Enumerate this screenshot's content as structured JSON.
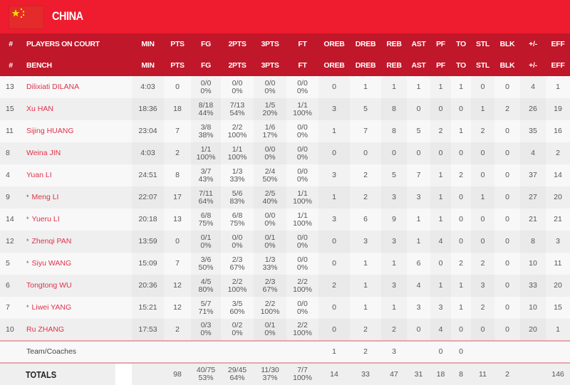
{
  "team": {
    "name": "CHINA",
    "flag_icon": "china-flag"
  },
  "colors": {
    "header": "#ee1c2e",
    "table_header": "#c0172a",
    "player_link": "#e0324a"
  },
  "headers_on_court": [
    "#",
    "PLAYERS ON COURT",
    "MIN",
    "PTS",
    "FG",
    "2PTS",
    "3PTS",
    "FT",
    "OREB",
    "DREB",
    "REB",
    "AST",
    "PF",
    "TO",
    "STL",
    "BLK",
    "+/-",
    "EFF"
  ],
  "headers_bench": [
    "#",
    "BENCH",
    "MIN",
    "PTS",
    "FG",
    "2PTS",
    "3PTS",
    "FT",
    "OREB",
    "DREB",
    "REB",
    "AST",
    "PF",
    "TO",
    "STL",
    "BLK",
    "+/-",
    "EFF"
  ],
  "players": [
    {
      "num": "13",
      "name": "Dilixiati DILANA",
      "starter": false,
      "min": "4:03",
      "pts": "0",
      "fg": [
        "0/0",
        "0%"
      ],
      "p2": [
        "0/0",
        "0%"
      ],
      "p3": [
        "0/0",
        "0%"
      ],
      "ft": [
        "0/0",
        "0%"
      ],
      "oreb": "0",
      "dreb": "1",
      "reb": "1",
      "ast": "1",
      "pf": "1",
      "to": "1",
      "stl": "0",
      "blk": "0",
      "pm": "4",
      "eff": "1"
    },
    {
      "num": "15",
      "name": "Xu HAN",
      "starter": false,
      "min": "18:36",
      "pts": "18",
      "fg": [
        "8/18",
        "44%"
      ],
      "p2": [
        "7/13",
        "54%"
      ],
      "p3": [
        "1/5",
        "20%"
      ],
      "ft": [
        "1/1",
        "100%"
      ],
      "oreb": "3",
      "dreb": "5",
      "reb": "8",
      "ast": "0",
      "pf": "0",
      "to": "0",
      "stl": "1",
      "blk": "2",
      "pm": "26",
      "eff": "19"
    },
    {
      "num": "11",
      "name": "Sijing HUANG",
      "starter": false,
      "min": "23:04",
      "pts": "7",
      "fg": [
        "3/8",
        "38%"
      ],
      "p2": [
        "2/2",
        "100%"
      ],
      "p3": [
        "1/6",
        "17%"
      ],
      "ft": [
        "0/0",
        "0%"
      ],
      "oreb": "1",
      "dreb": "7",
      "reb": "8",
      "ast": "5",
      "pf": "2",
      "to": "1",
      "stl": "2",
      "blk": "0",
      "pm": "35",
      "eff": "16"
    },
    {
      "num": "8",
      "name": "Weina JIN",
      "starter": false,
      "min": "4:03",
      "pts": "2",
      "fg": [
        "1/1",
        "100%"
      ],
      "p2": [
        "1/1",
        "100%"
      ],
      "p3": [
        "0/0",
        "0%"
      ],
      "ft": [
        "0/0",
        "0%"
      ],
      "oreb": "0",
      "dreb": "0",
      "reb": "0",
      "ast": "0",
      "pf": "0",
      "to": "0",
      "stl": "0",
      "blk": "0",
      "pm": "4",
      "eff": "2"
    },
    {
      "num": "4",
      "name": "Yuan LI",
      "starter": false,
      "min": "24:51",
      "pts": "8",
      "fg": [
        "3/7",
        "43%"
      ],
      "p2": [
        "1/3",
        "33%"
      ],
      "p3": [
        "2/4",
        "50%"
      ],
      "ft": [
        "0/0",
        "0%"
      ],
      "oreb": "3",
      "dreb": "2",
      "reb": "5",
      "ast": "7",
      "pf": "1",
      "to": "2",
      "stl": "0",
      "blk": "0",
      "pm": "37",
      "eff": "14"
    },
    {
      "num": "9",
      "name": "Meng LI",
      "starter": true,
      "min": "22:07",
      "pts": "17",
      "fg": [
        "7/11",
        "64%"
      ],
      "p2": [
        "5/6",
        "83%"
      ],
      "p3": [
        "2/5",
        "40%"
      ],
      "ft": [
        "1/1",
        "100%"
      ],
      "oreb": "1",
      "dreb": "2",
      "reb": "3",
      "ast": "3",
      "pf": "1",
      "to": "0",
      "stl": "1",
      "blk": "0",
      "pm": "27",
      "eff": "20"
    },
    {
      "num": "14",
      "name": "Yueru LI",
      "starter": true,
      "min": "20:18",
      "pts": "13",
      "fg": [
        "6/8",
        "75%"
      ],
      "p2": [
        "6/8",
        "75%"
      ],
      "p3": [
        "0/0",
        "0%"
      ],
      "ft": [
        "1/1",
        "100%"
      ],
      "oreb": "3",
      "dreb": "6",
      "reb": "9",
      "ast": "1",
      "pf": "1",
      "to": "0",
      "stl": "0",
      "blk": "0",
      "pm": "21",
      "eff": "21"
    },
    {
      "num": "12",
      "name": "Zhenqi PAN",
      "starter": true,
      "min": "13:59",
      "pts": "0",
      "fg": [
        "0/1",
        "0%"
      ],
      "p2": [
        "0/0",
        "0%"
      ],
      "p3": [
        "0/1",
        "0%"
      ],
      "ft": [
        "0/0",
        "0%"
      ],
      "oreb": "0",
      "dreb": "3",
      "reb": "3",
      "ast": "1",
      "pf": "4",
      "to": "0",
      "stl": "0",
      "blk": "0",
      "pm": "8",
      "eff": "3"
    },
    {
      "num": "5",
      "name": "Siyu WANG",
      "starter": true,
      "min": "15:09",
      "pts": "7",
      "fg": [
        "3/6",
        "50%"
      ],
      "p2": [
        "2/3",
        "67%"
      ],
      "p3": [
        "1/3",
        "33%"
      ],
      "ft": [
        "0/0",
        "0%"
      ],
      "oreb": "0",
      "dreb": "1",
      "reb": "1",
      "ast": "6",
      "pf": "0",
      "to": "2",
      "stl": "2",
      "blk": "0",
      "pm": "10",
      "eff": "11"
    },
    {
      "num": "6",
      "name": "Tongtong WU",
      "starter": false,
      "min": "20:36",
      "pts": "12",
      "fg": [
        "4/5",
        "80%"
      ],
      "p2": [
        "2/2",
        "100%"
      ],
      "p3": [
        "2/3",
        "67%"
      ],
      "ft": [
        "2/2",
        "100%"
      ],
      "oreb": "2",
      "dreb": "1",
      "reb": "3",
      "ast": "4",
      "pf": "1",
      "to": "1",
      "stl": "3",
      "blk": "0",
      "pm": "33",
      "eff": "20"
    },
    {
      "num": "7",
      "name": "Liwei YANG",
      "starter": true,
      "min": "15:21",
      "pts": "12",
      "fg": [
        "5/7",
        "71%"
      ],
      "p2": [
        "3/5",
        "60%"
      ],
      "p3": [
        "2/2",
        "100%"
      ],
      "ft": [
        "0/0",
        "0%"
      ],
      "oreb": "0",
      "dreb": "1",
      "reb": "1",
      "ast": "3",
      "pf": "3",
      "to": "1",
      "stl": "2",
      "blk": "0",
      "pm": "10",
      "eff": "15"
    },
    {
      "num": "10",
      "name": "Ru ZHANG",
      "starter": false,
      "min": "17:53",
      "pts": "2",
      "fg": [
        "0/3",
        "0%"
      ],
      "p2": [
        "0/2",
        "0%"
      ],
      "p3": [
        "0/1",
        "0%"
      ],
      "ft": [
        "2/2",
        "100%"
      ],
      "oreb": "0",
      "dreb": "2",
      "reb": "2",
      "ast": "0",
      "pf": "4",
      "to": "0",
      "stl": "0",
      "blk": "0",
      "pm": "20",
      "eff": "1"
    }
  ],
  "starter_mark": "*",
  "team_row": {
    "label": "Team/Coaches",
    "oreb": "1",
    "dreb": "2",
    "reb": "3",
    "ast": "",
    "pf": "0",
    "to": "0",
    "stl": "",
    "blk": "",
    "pm": "",
    "eff": ""
  },
  "totals": {
    "label": "TOTALS",
    "min": "",
    "pts": "98",
    "fg": [
      "40/75",
      "53%"
    ],
    "p2": [
      "29/45",
      "64%"
    ],
    "p3": [
      "11/30",
      "37%"
    ],
    "ft": [
      "7/7",
      "100%"
    ],
    "oreb": "14",
    "dreb": "33",
    "reb": "47",
    "ast": "31",
    "pf": "18",
    "to": "8",
    "stl": "11",
    "blk": "2",
    "pm": "",
    "eff": "146"
  }
}
